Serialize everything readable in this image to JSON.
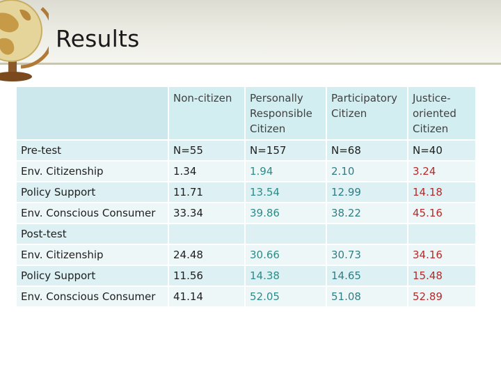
{
  "slide": {
    "title": "Results"
  },
  "table": {
    "headers": [
      "",
      "Non-citizen",
      "Personally Responsible Citizen",
      "Participatory Citizen",
      "Justice-oriented Citizen"
    ],
    "rows": [
      {
        "label": "Pre-test",
        "values": [
          "N=55",
          "N=157",
          "N=68",
          "N=40"
        ]
      },
      {
        "label": "Env. Citizenship",
        "values": [
          "1.34",
          "1.94",
          "2.10",
          "3.24"
        ]
      },
      {
        "label": "Policy Support",
        "values": [
          "11.71",
          "13.54",
          "12.99",
          "14.18"
        ]
      },
      {
        "label": "Env. Conscious Consumer",
        "values": [
          "33.34",
          "39.86",
          "38.22",
          "45.16"
        ]
      },
      {
        "label": "Post-test",
        "values": [
          "",
          "",
          "",
          ""
        ]
      },
      {
        "label": "Env. Citizenship",
        "values": [
          "24.48",
          "30.66",
          "30.73",
          "34.16"
        ]
      },
      {
        "label": "Policy Support",
        "values": [
          "11.56",
          "14.38",
          "14.65",
          "15.48"
        ]
      },
      {
        "label": "Env. Conscious Consumer",
        "values": [
          "41.14",
          "52.05",
          "51.08",
          "52.89"
        ]
      }
    ]
  },
  "colors": {
    "header_bg": "#d3eef1",
    "row_band": "#ddf0f3",
    "row_plain": "#eef7f8",
    "personally_responsible": "#2e8b87",
    "participatory": "#2f7e86",
    "justice_oriented": "#b52a2a"
  },
  "icons": {
    "logo": "globe-icon"
  }
}
